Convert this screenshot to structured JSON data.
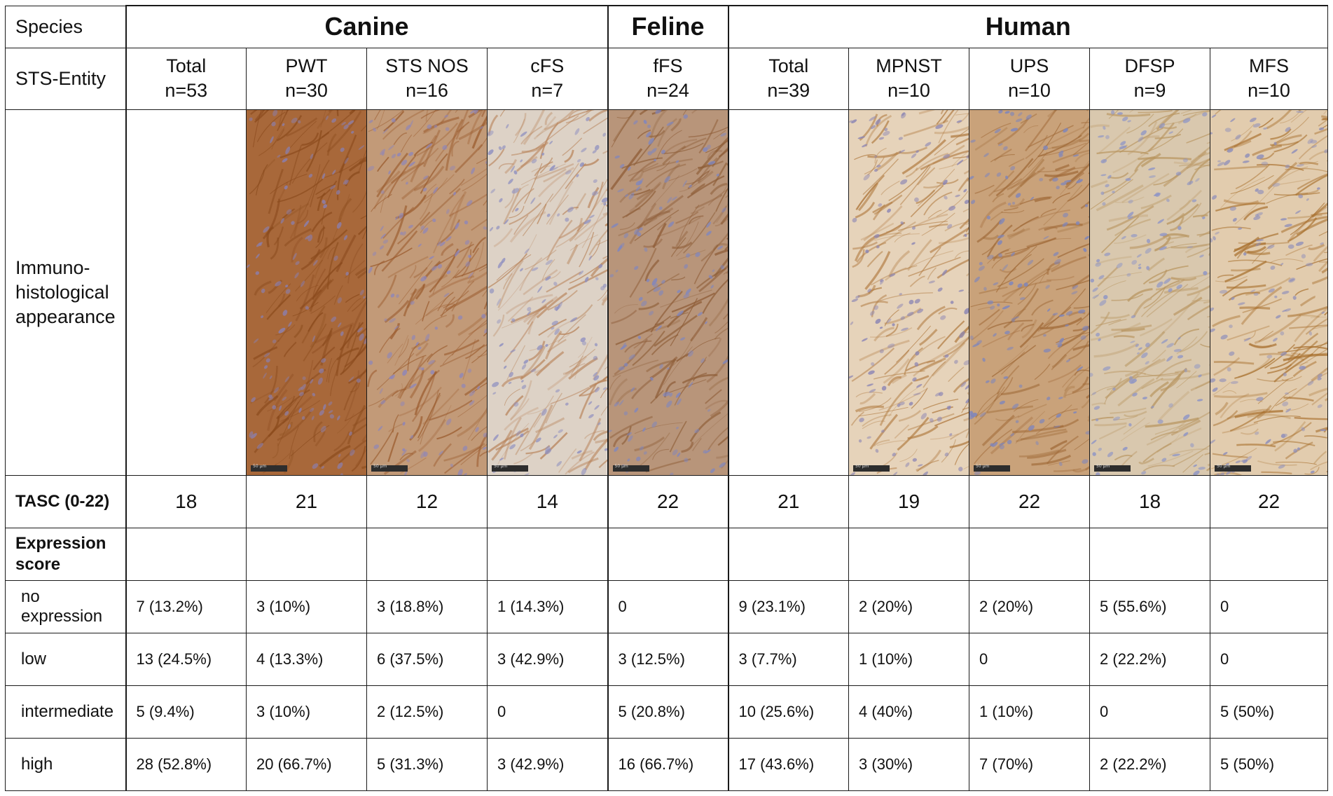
{
  "header": {
    "species_label": "Species",
    "entity_label": "STS-Entity",
    "species": [
      {
        "name": "Canine"
      },
      {
        "name": "Feline"
      },
      {
        "name": "Human"
      }
    ],
    "entities": [
      {
        "name": "Total",
        "n": "n=53"
      },
      {
        "name": "PWT",
        "n": "n=30"
      },
      {
        "name": "STS NOS",
        "n": "n=16"
      },
      {
        "name": "cFS",
        "n": "n=7"
      },
      {
        "name": "fFS",
        "n": "n=24"
      },
      {
        "name": "Total",
        "n": "n=39"
      },
      {
        "name": "MPNST",
        "n": "n=10"
      },
      {
        "name": "UPS",
        "n": "n=10"
      },
      {
        "name": "DFSP",
        "n": "n=9"
      },
      {
        "name": "MFS",
        "n": "n=10"
      }
    ]
  },
  "image_row": {
    "label_line1": "Immuno-",
    "label_line2": "histological",
    "label_line3": "appearance",
    "scale_label": "50 µm",
    "images": [
      {
        "entity": "PWT",
        "base": "#a8683a",
        "stroke": "#8a4a1c",
        "nuclei": "#8a7fb0"
      },
      {
        "entity": "STS NOS",
        "base": "#c29a78",
        "stroke": "#9a5a2c",
        "nuclei": "#8f86b8"
      },
      {
        "entity": "cFS",
        "base": "#ddd2c6",
        "stroke": "#b8835a",
        "nuclei": "#8f90c0"
      },
      {
        "entity": "fFS",
        "base": "#b8957a",
        "stroke": "#8d5c36",
        "nuclei": "#7f86bf"
      },
      {
        "entity": "MPNST",
        "base": "#e6d3ba",
        "stroke": "#b07a40",
        "nuclei": "#8c86b4"
      },
      {
        "entity": "UPS",
        "base": "#c9a27a",
        "stroke": "#a06a38",
        "nuclei": "#7d85bd"
      },
      {
        "entity": "DFSP",
        "base": "#d9c8ae",
        "stroke": "#b89560",
        "nuclei": "#8e95c6"
      },
      {
        "entity": "MFS",
        "base": "#e2ccae",
        "stroke": "#a8702e",
        "nuclei": "#8f8fba"
      }
    ]
  },
  "tasc": {
    "label": "TASC (0-22)",
    "values": [
      "18",
      "21",
      "12",
      "14",
      "22",
      "21",
      "19",
      "22",
      "18",
      "22"
    ]
  },
  "expression": {
    "label_line1": "Expression",
    "label_line2": "score",
    "rows": [
      {
        "label": "no expression",
        "values": [
          "7 (13.2%)",
          "3 (10%)",
          "3 (18.8%)",
          "1 (14.3%)",
          "0",
          "9 (23.1%)",
          "2 (20%)",
          "2 (20%)",
          "5 (55.6%)",
          "0"
        ]
      },
      {
        "label": "low",
        "values": [
          "13 (24.5%)",
          "4 (13.3%)",
          "6 (37.5%)",
          "3 (42.9%)",
          "3 (12.5%)",
          "3 (7.7%)",
          "1 (10%)",
          "0",
          "2 (22.2%)",
          "0"
        ]
      },
      {
        "label": "intermediate",
        "values": [
          "5 (9.4%)",
          "3 (10%)",
          "2 (12.5%)",
          "0",
          "5 (20.8%)",
          "10 (25.6%)",
          "4 (40%)",
          "1 (10%)",
          "0",
          "5 (50%)"
        ]
      },
      {
        "label": "high",
        "values": [
          "28 (52.8%)",
          "20 (66.7%)",
          "5 (31.3%)",
          "3 (42.9%)",
          "16 (66.7%)",
          "17 (43.6%)",
          "3 (30%)",
          "7 (70%)",
          "2 (22.2%)",
          "5 (50%)"
        ]
      }
    ]
  }
}
